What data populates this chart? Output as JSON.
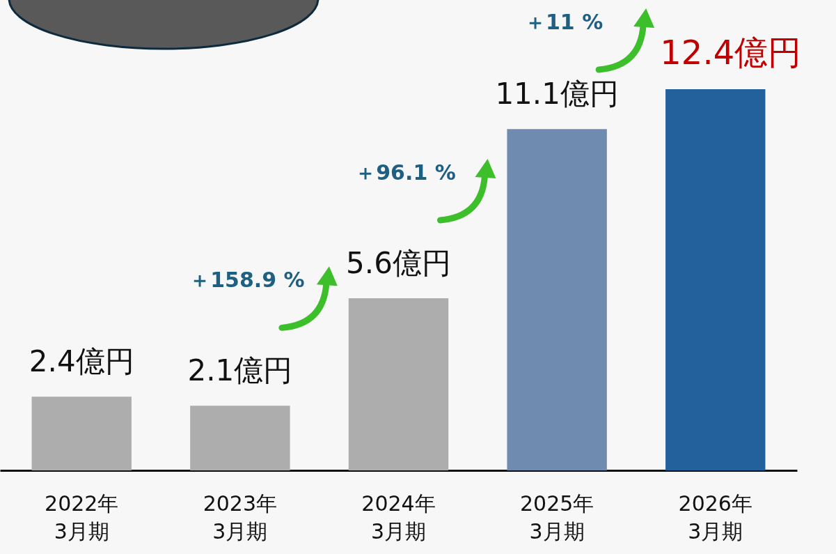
{
  "chart_data": {
    "type": "bar",
    "categories": [
      "2022年\n3月期",
      "2023年\n3月期",
      "2024年\n3月期",
      "2025年\n3月期",
      "2026年\n3月期"
    ],
    "values": [
      2.4,
      2.1,
      5.6,
      11.1,
      12.4
    ],
    "colors": [
      "#adadad",
      "#adadad",
      "#adadad",
      "#6f8bb0",
      "#23619c"
    ],
    "value_labels": [
      "2.4億円",
      "2.1億円",
      "5.6億円",
      "11.1億円",
      "12.4億円"
    ],
    "annotations": [
      "＋158.9 %",
      "＋96.1 %",
      "＋11 %"
    ],
    "grid": false
  }
}
